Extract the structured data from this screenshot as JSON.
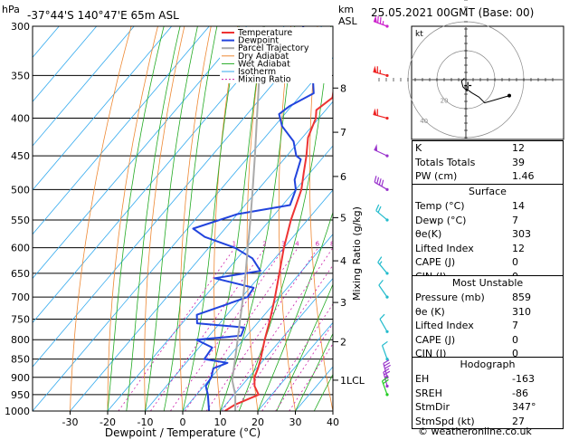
{
  "header": {
    "pressure_unit": "hPa",
    "location": "-37°44'S  140°47'E  65m  ASL",
    "height_unit_line1": "km",
    "height_unit_line2": "ASL",
    "datetime": "25.05.2021  00GMT  (Base: 00)"
  },
  "chart_data": {
    "type": "skew-t log-p sounding",
    "xlabel": "Dewpoint / Temperature (°C)",
    "ylabel_left": "hPa",
    "ylabel_right": "Mixing Ratio (g/kg)",
    "pressure_levels": [
      300,
      350,
      400,
      450,
      500,
      550,
      600,
      650,
      700,
      750,
      800,
      850,
      900,
      950,
      1000
    ],
    "x_ticks": [
      -30,
      -20,
      -10,
      0,
      10,
      20,
      30,
      40
    ],
    "xlim": [
      -40,
      40
    ],
    "ylim": [
      1000,
      300
    ],
    "km_ticks": [
      {
        "label": "8",
        "p": 364
      },
      {
        "label": "7",
        "p": 418
      },
      {
        "label": "6",
        "p": 480
      },
      {
        "label": "5",
        "p": 546
      },
      {
        "label": "4",
        "p": 625
      },
      {
        "label": "3",
        "p": 712
      },
      {
        "label": "2",
        "p": 805
      },
      {
        "label": "1LCL",
        "p": 908
      }
    ],
    "mixing_ratio_labels": [
      "1",
      "2",
      "3",
      "4",
      "6",
      "8",
      "10",
      "16",
      "20",
      "25"
    ],
    "mixing_ratio_values": [
      1,
      2,
      3,
      4,
      6,
      8,
      10,
      16,
      20,
      25
    ],
    "legend": [
      "Temperature",
      "Dewpoint",
      "Parcel Trajectory",
      "Dry Adiabat",
      "Wet Adiabat",
      "Isotherm",
      "Mixing Ratio"
    ],
    "series": [
      {
        "name": "Temperature",
        "color": "#ee3333",
        "points": [
          [
            1000,
            11.2
          ],
          [
            980,
            12.5
          ],
          [
            950,
            16.5
          ],
          [
            925,
            13.5
          ],
          [
            900,
            11.5
          ],
          [
            875,
            10.4
          ],
          [
            850,
            9.0
          ],
          [
            800,
            5.7
          ],
          [
            750,
            2.5
          ],
          [
            700,
            -1.2
          ],
          [
            650,
            -5.4
          ],
          [
            600,
            -10.0
          ],
          [
            550,
            -14.4
          ],
          [
            500,
            -18.5
          ],
          [
            475,
            -21.6
          ],
          [
            450,
            -24.8
          ],
          [
            425,
            -28.5
          ],
          [
            400,
            -30.8
          ],
          [
            390,
            -32.5
          ],
          [
            375,
            -31.0
          ],
          [
            350,
            -35.2
          ],
          [
            325,
            -39.0
          ],
          [
            300,
            -43.0
          ]
        ]
      },
      {
        "name": "Dewpoint",
        "color": "#2244dd",
        "points": [
          [
            1000,
            7.0
          ],
          [
            950,
            3.0
          ],
          [
            925,
            0.5
          ],
          [
            900,
            0.0
          ],
          [
            875,
            -1.5
          ],
          [
            860,
            1.0
          ],
          [
            850,
            -6.0
          ],
          [
            820,
            -6.5
          ],
          [
            800,
            -12.5
          ],
          [
            790,
            -1.5
          ],
          [
            770,
            -2.5
          ],
          [
            760,
            -16.0
          ],
          [
            740,
            -18.0
          ],
          [
            700,
            -8.5
          ],
          [
            680,
            -9.0
          ],
          [
            660,
            -21.5
          ],
          [
            645,
            -11.0
          ],
          [
            620,
            -16.0
          ],
          [
            600,
            -23.0
          ],
          [
            580,
            -33.5
          ],
          [
            565,
            -38.5
          ],
          [
            540,
            -30.0
          ],
          [
            525,
            -18.0
          ],
          [
            500,
            -20.0
          ],
          [
            485,
            -22.5
          ],
          [
            455,
            -25.5
          ],
          [
            450,
            -27.5
          ],
          [
            430,
            -31.5
          ],
          [
            410,
            -38.0
          ],
          [
            395,
            -41.5
          ],
          [
            385,
            -40.5
          ],
          [
            370,
            -37.0
          ],
          [
            340,
            -43.5
          ],
          [
            300,
            -55.0
          ]
        ]
      },
      {
        "name": "Parcel Trajectory",
        "color": "#aaaaaa",
        "points": [
          [
            1000,
            14.0
          ],
          [
            950,
            10.3
          ],
          [
            908,
            6.2
          ],
          [
            850,
            2.2
          ],
          [
            800,
            -1.5
          ],
          [
            750,
            -5.5
          ],
          [
            700,
            -9.7
          ],
          [
            650,
            -14.4
          ],
          [
            600,
            -19.6
          ],
          [
            550,
            -25.2
          ],
          [
            500,
            -31.5
          ],
          [
            450,
            -38.5
          ],
          [
            400,
            -46.5
          ],
          [
            350,
            -55.5
          ],
          [
            300,
            -65.5
          ]
        ]
      }
    ],
    "wind_barbs": [
      {
        "p": 300,
        "color": "#cc22cc",
        "dir": 290,
        "kt": 75
      },
      {
        "p": 350,
        "color": "#ee2222",
        "dir": 285,
        "kt": 65
      },
      {
        "p": 400,
        "color": "#ee2222",
        "dir": 285,
        "kt": 60
      },
      {
        "p": 450,
        "color": "#9933cc",
        "dir": 295,
        "kt": 50
      },
      {
        "p": 500,
        "color": "#9933cc",
        "dir": 300,
        "kt": 40
      },
      {
        "p": 550,
        "color": "#22bbcc",
        "dir": 310,
        "kt": 20
      },
      {
        "p": 650,
        "color": "#22bbcc",
        "dir": 320,
        "kt": 15
      },
      {
        "p": 700,
        "color": "#22bbcc",
        "dir": 325,
        "kt": 10
      },
      {
        "p": 780,
        "color": "#22bbcc",
        "dir": 330,
        "kt": 10
      },
      {
        "p": 850,
        "color": "#22bbcc",
        "dir": 340,
        "kt": 10
      },
      {
        "p": 900,
        "color": "#9933cc",
        "dir": 345,
        "kt": 30
      },
      {
        "p": 925,
        "color": "#9933cc",
        "dir": 345,
        "kt": 25
      },
      {
        "p": 950,
        "color": "#22cc22",
        "dir": 340,
        "kt": 20
      }
    ]
  },
  "hodograph": {
    "unit": "kt",
    "ring_labels": [
      "20",
      "40"
    ],
    "points_kt": [
      [
        -1,
        1
      ],
      [
        -3,
        -1
      ],
      [
        -2,
        -5
      ],
      [
        1,
        -8
      ],
      [
        0,
        -6
      ],
      [
        4,
        -9
      ],
      [
        9,
        -12
      ],
      [
        13,
        -16
      ],
      [
        20,
        -14
      ],
      [
        30,
        -11
      ]
    ],
    "storm_marker_kt": [
      1,
      -4
    ]
  },
  "indices": [
    {
      "label": "K",
      "value": "12"
    },
    {
      "label": "Totals Totals",
      "value": "39"
    },
    {
      "label": "PW (cm)",
      "value": "1.46"
    }
  ],
  "surface": {
    "title": "Surface",
    "rows": [
      {
        "label": "Temp (°C)",
        "value": "14"
      },
      {
        "label": "Dewp (°C)",
        "value": "7"
      },
      {
        "label": "θe(K)",
        "value": "303"
      },
      {
        "label": "Lifted Index",
        "value": "12"
      },
      {
        "label": "CAPE (J)",
        "value": "0"
      },
      {
        "label": "CIN (J)",
        "value": "0"
      }
    ]
  },
  "most_unstable": {
    "title": "Most Unstable",
    "rows": [
      {
        "label": "Pressure (mb)",
        "value": "859"
      },
      {
        "label": "θe (K)",
        "value": "310"
      },
      {
        "label": "Lifted Index",
        "value": "7"
      },
      {
        "label": "CAPE (J)",
        "value": "0"
      },
      {
        "label": "CIN (J)",
        "value": "0"
      }
    ]
  },
  "hodo_table": {
    "title": "Hodograph",
    "rows": [
      {
        "label": "EH",
        "value": "-163"
      },
      {
        "label": "SREH",
        "value": "-86"
      },
      {
        "label": "StmDir",
        "value": "347°"
      },
      {
        "label": "StmSpd (kt)",
        "value": "27"
      }
    ]
  },
  "footer": "© weatheronline.co.uk",
  "colors": {
    "temperature": "#ee3333",
    "dewpoint": "#2244dd",
    "parcel": "#aaaaaa",
    "dry_adiabat": "#ee8833",
    "wet_adiabat": "#22aa22",
    "isotherm": "#33aaee",
    "mixing_ratio": "#cc22aa"
  }
}
